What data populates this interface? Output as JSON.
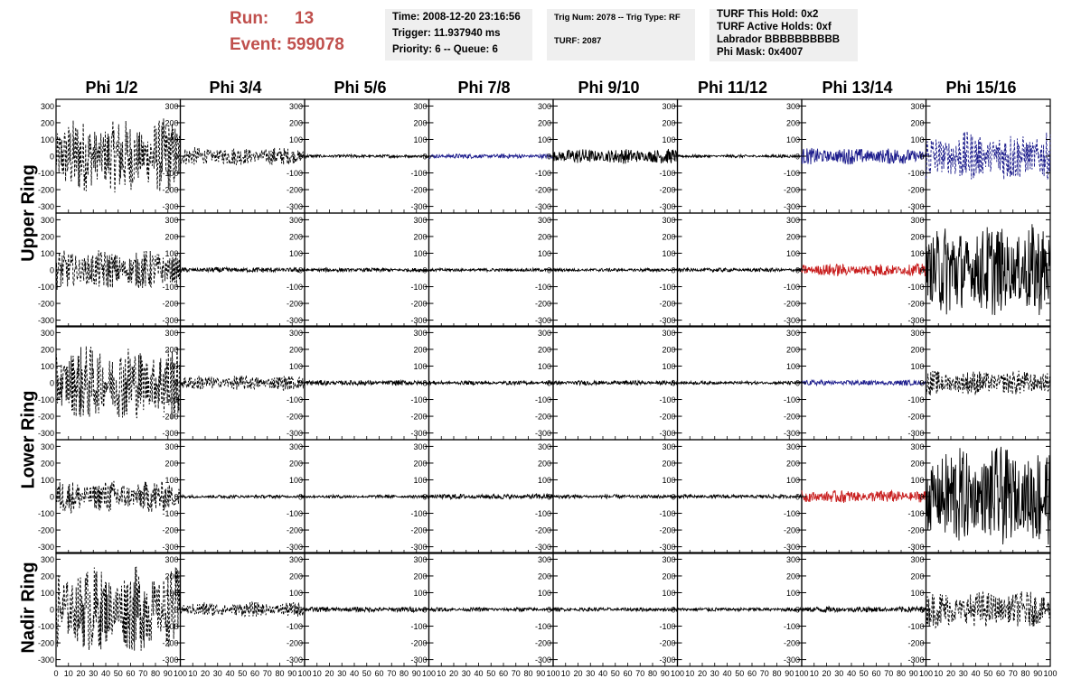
{
  "header": {
    "run_label": "Run:",
    "run_value": "13",
    "event_label": "Event:",
    "event_value": "599078",
    "time": "Time: 2008-12-20 23:16:56",
    "trigger": "Trigger: 11.937940 ms",
    "priority": "Priority: 6 -- Queue: 6",
    "trig_num": "Trig Num: 2078 -- Trig Type: RF",
    "turf": "TURF: 2087",
    "turf_hold": "TURF This Hold: 0x2",
    "turf_active": "TURF Active Holds: 0xf",
    "labrador": "Labrador BBBBBBBBBB",
    "phi_mask": "Phi Mask: 0x4007"
  },
  "columns": [
    "Phi 1/2",
    "Phi 3/4",
    "Phi 5/6",
    "Phi 7/8",
    "Phi 9/10",
    "Phi 11/12",
    "Phi 13/14",
    "Phi 15/16"
  ],
  "row_labels": {
    "upper": "Upper Ring",
    "lower": "Lower Ring",
    "nadir": "Nadir Ring"
  },
  "chart_data": {
    "type": "line",
    "xlim": [
      0,
      100
    ],
    "ylim": [
      -340,
      340
    ],
    "yticks": [
      "300",
      "200",
      "100",
      "0",
      "-100",
      "-200",
      "-300"
    ],
    "xticks": [
      "0",
      "10",
      "20",
      "30",
      "40",
      "50",
      "60",
      "70",
      "80",
      "90",
      "100"
    ],
    "colors": {
      "black": "#000000",
      "blue": "#1c1c8c",
      "red": "#c81e1e",
      "title_red": "#c0504d"
    },
    "panels": [
      [
        {
          "amp": 230,
          "style": "dashed",
          "color": "black"
        },
        {
          "amp": 55,
          "style": "dashed",
          "color": "black"
        },
        {
          "amp": 10,
          "style": "solid",
          "color": "black"
        },
        {
          "amp": 14,
          "style": "solid",
          "color": "blue"
        },
        {
          "amp": 45,
          "style": "solid",
          "color": "black"
        },
        {
          "amp": 9,
          "style": "solid",
          "color": "black"
        },
        {
          "amp": 50,
          "style": "solid",
          "color": "blue"
        },
        {
          "amp": 150,
          "style": "dashed",
          "color": "blue"
        }
      ],
      [
        {
          "amp": 120,
          "style": "dashed",
          "color": "black"
        },
        {
          "amp": 16,
          "style": "solid",
          "color": "black"
        },
        {
          "amp": 12,
          "style": "solid",
          "color": "black"
        },
        {
          "amp": 10,
          "style": "solid",
          "color": "black"
        },
        {
          "amp": 10,
          "style": "solid",
          "color": "black"
        },
        {
          "amp": 12,
          "style": "solid",
          "color": "black"
        },
        {
          "amp": 38,
          "style": "solid",
          "color": "red"
        },
        {
          "amp": 280,
          "style": "solid",
          "color": "black"
        }
      ],
      [
        {
          "amp": 230,
          "style": "dashed",
          "color": "black"
        },
        {
          "amp": 45,
          "style": "dashed",
          "color": "black"
        },
        {
          "amp": 16,
          "style": "solid",
          "color": "black"
        },
        {
          "amp": 12,
          "style": "solid",
          "color": "black"
        },
        {
          "amp": 14,
          "style": "solid",
          "color": "black"
        },
        {
          "amp": 10,
          "style": "solid",
          "color": "black"
        },
        {
          "amp": 16,
          "style": "solid",
          "color": "blue"
        },
        {
          "amp": 75,
          "style": "dashed",
          "color": "black"
        }
      ],
      [
        {
          "amp": 100,
          "style": "dashed",
          "color": "black"
        },
        {
          "amp": 10,
          "style": "solid",
          "color": "black"
        },
        {
          "amp": 10,
          "style": "solid",
          "color": "black"
        },
        {
          "amp": 16,
          "style": "solid",
          "color": "black"
        },
        {
          "amp": 12,
          "style": "solid",
          "color": "black"
        },
        {
          "amp": 12,
          "style": "solid",
          "color": "black"
        },
        {
          "amp": 38,
          "style": "solid",
          "color": "red"
        },
        {
          "amp": 300,
          "style": "solid",
          "color": "black"
        }
      ],
      [
        {
          "amp": 260,
          "style": "dashed",
          "color": "black"
        },
        {
          "amp": 45,
          "style": "dashed",
          "color": "black"
        },
        {
          "amp": 16,
          "style": "solid",
          "color": "black"
        },
        {
          "amp": 12,
          "style": "solid",
          "color": "black"
        },
        {
          "amp": 12,
          "style": "solid",
          "color": "black"
        },
        {
          "amp": 12,
          "style": "solid",
          "color": "black"
        },
        {
          "amp": 18,
          "style": "solid",
          "color": "black"
        },
        {
          "amp": 110,
          "style": "dashed",
          "color": "black"
        }
      ]
    ]
  }
}
